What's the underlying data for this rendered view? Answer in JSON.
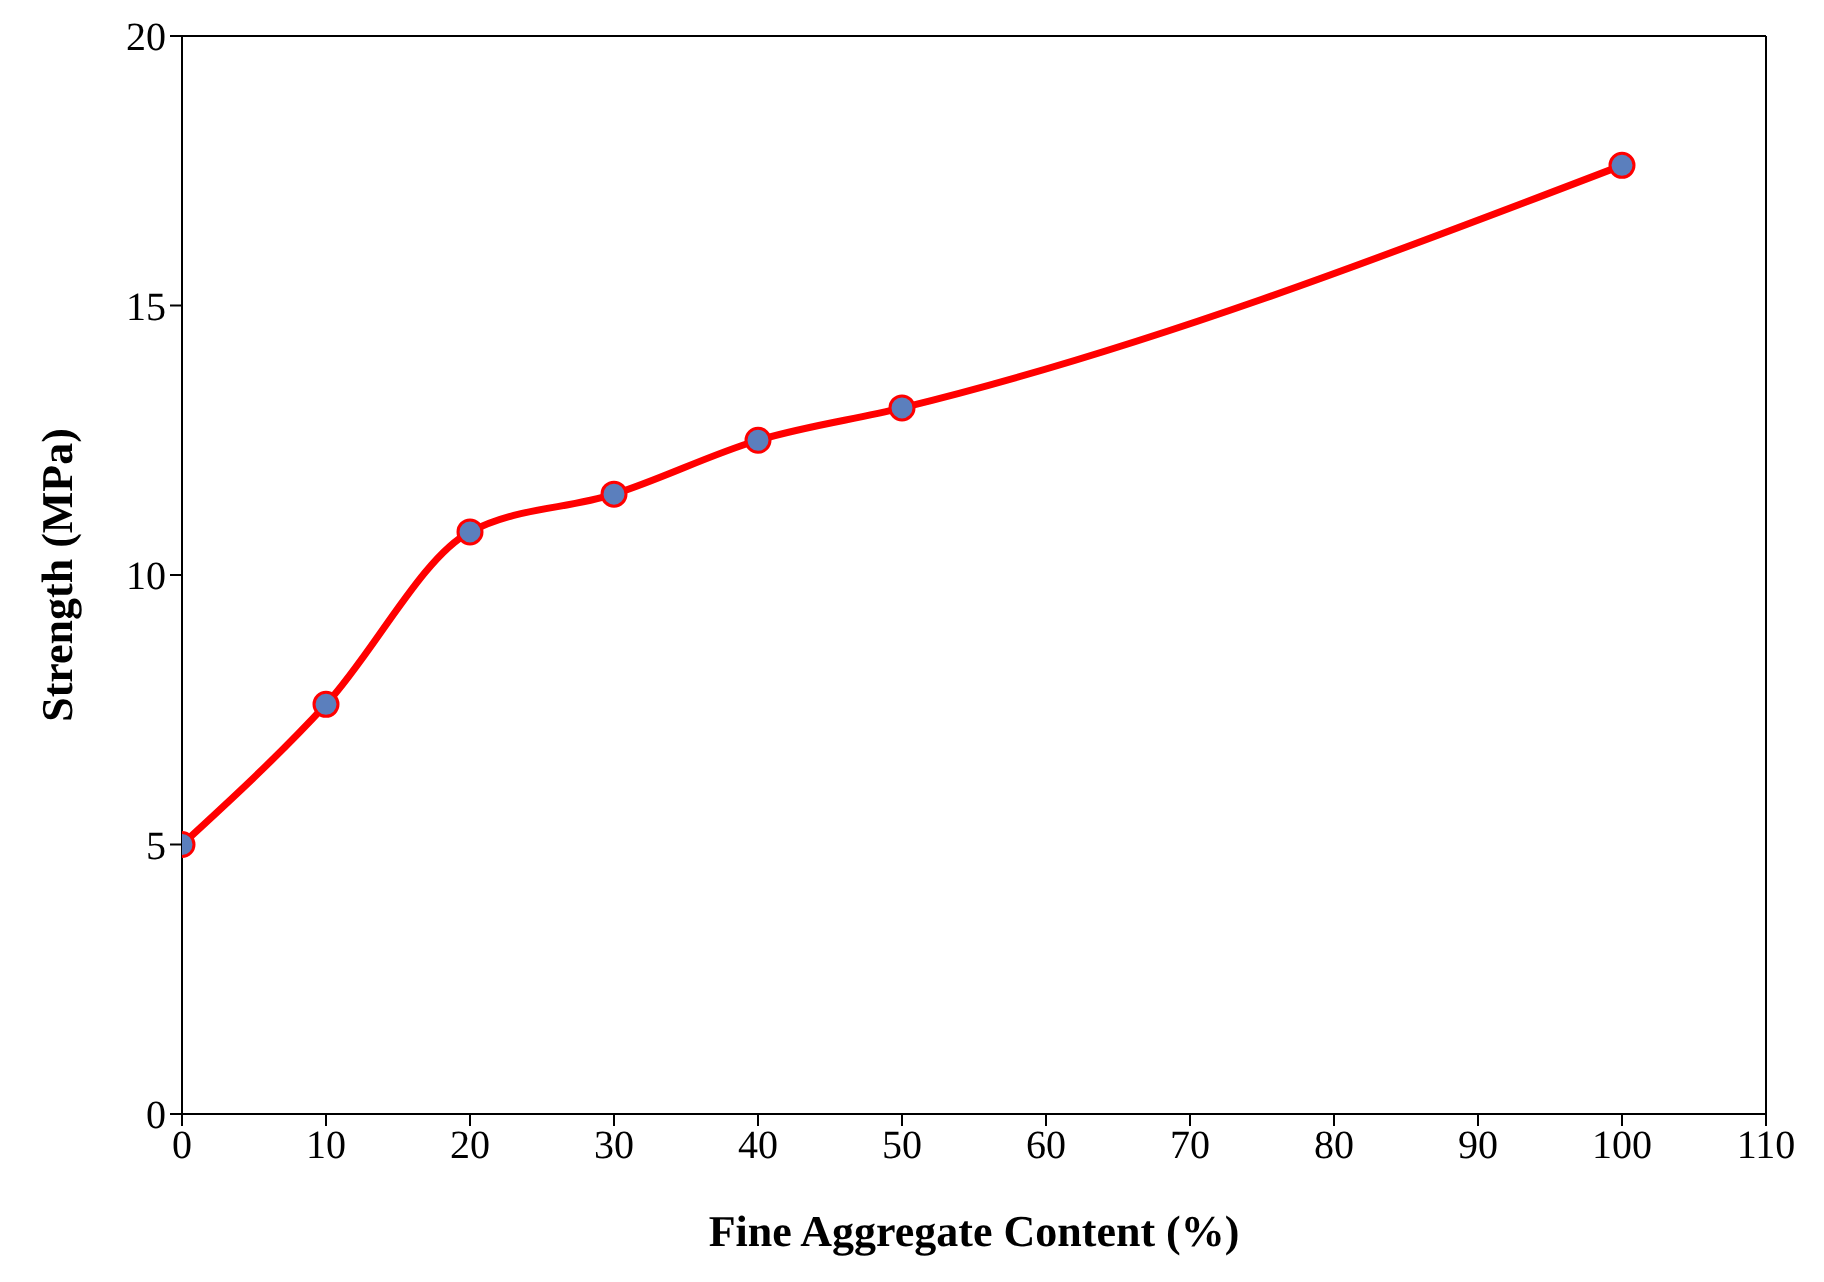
{
  "chart_data": {
    "type": "line",
    "xlabel": "Fine Aggregate Content (%)",
    "ylabel": "Strength (MPa)",
    "x": [
      0,
      10,
      20,
      30,
      40,
      50,
      100
    ],
    "series": [
      {
        "color": "#ff0000",
        "values": [
          5.0,
          7.6,
          10.8,
          11.5,
          12.5,
          13.1,
          17.6
        ]
      }
    ],
    "xlim": [
      0,
      110
    ],
    "xticks": [
      0,
      10,
      20,
      30,
      40,
      50,
      60,
      70,
      80,
      90,
      100,
      110
    ],
    "ylim": [
      0,
      20
    ],
    "yticks": [
      0,
      5,
      10,
      15,
      20
    ],
    "marker": "circle",
    "line_style": "solid"
  }
}
